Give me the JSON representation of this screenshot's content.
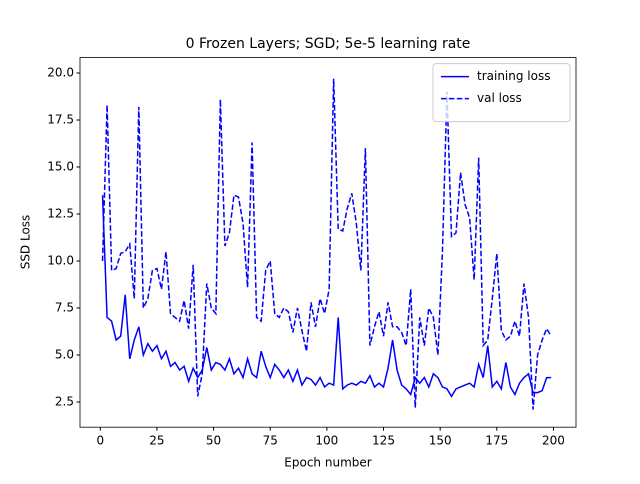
{
  "chart_data": {
    "type": "line",
    "title": "0 Frozen Layers; SGD; 5e-5 learning rate",
    "xlabel": "Epoch number",
    "ylabel": "SSD Loss",
    "x": [
      1,
      3,
      5,
      7,
      9,
      11,
      13,
      15,
      17,
      19,
      21,
      23,
      25,
      27,
      29,
      31,
      33,
      35,
      37,
      39,
      41,
      43,
      45,
      47,
      49,
      51,
      53,
      55,
      57,
      59,
      61,
      63,
      65,
      67,
      69,
      71,
      73,
      75,
      77,
      79,
      81,
      83,
      85,
      87,
      89,
      91,
      93,
      95,
      97,
      99,
      101,
      103,
      105,
      107,
      109,
      111,
      113,
      115,
      117,
      119,
      121,
      123,
      125,
      127,
      129,
      131,
      133,
      135,
      137,
      139,
      141,
      143,
      145,
      147,
      149,
      151,
      153,
      155,
      157,
      159,
      161,
      163,
      165,
      167,
      169,
      171,
      173,
      175,
      177,
      179,
      181,
      183,
      185,
      187,
      189,
      191,
      193,
      195,
      197,
      199
    ],
    "series": [
      {
        "name": "training loss",
        "color": "#0000ff",
        "linestyle": "solid",
        "values": [
          13.5,
          7.0,
          6.8,
          5.8,
          6.0,
          8.2,
          4.8,
          5.8,
          6.5,
          5.0,
          5.6,
          5.2,
          5.5,
          4.8,
          5.2,
          4.4,
          4.6,
          4.2,
          4.4,
          3.6,
          4.3,
          3.8,
          4.2,
          5.4,
          4.2,
          4.6,
          4.5,
          4.2,
          4.8,
          4.0,
          4.3,
          3.8,
          4.8,
          4.0,
          3.8,
          5.2,
          4.4,
          3.8,
          4.5,
          4.2,
          3.8,
          4.2,
          3.6,
          4.2,
          3.4,
          3.8,
          3.7,
          3.4,
          3.8,
          3.3,
          3.5,
          3.4,
          7.0,
          3.2,
          3.4,
          3.5,
          3.4,
          3.6,
          3.5,
          3.9,
          3.3,
          3.5,
          3.3,
          4.3,
          5.8,
          4.2,
          3.4,
          3.2,
          2.9,
          3.8,
          3.5,
          3.8,
          3.3,
          4.0,
          3.8,
          3.3,
          3.2,
          2.8,
          3.2,
          3.3,
          3.4,
          3.5,
          3.3,
          4.5,
          3.8,
          5.5,
          3.3,
          3.6,
          3.2,
          4.6,
          3.3,
          2.9,
          3.5,
          3.8,
          4.0,
          3.0,
          3.0,
          3.1,
          3.8,
          3.8
        ]
      },
      {
        "name": "val loss",
        "color": "#0000ff",
        "linestyle": "dashed",
        "values": [
          10.0,
          18.3,
          9.5,
          9.6,
          10.4,
          10.5,
          10.9,
          8.0,
          18.2,
          7.5,
          8.0,
          9.5,
          9.6,
          8.5,
          10.5,
          7.2,
          7.0,
          6.8,
          7.9,
          6.4,
          9.8,
          2.8,
          4.0,
          8.8,
          7.5,
          7.2,
          18.6,
          10.8,
          11.5,
          13.5,
          13.4,
          12.0,
          8.6,
          16.3,
          7.0,
          6.8,
          9.5,
          10.0,
          7.2,
          7.0,
          7.5,
          7.3,
          6.2,
          7.5,
          6.3,
          5.2,
          7.8,
          6.5,
          8.0,
          7.2,
          8.5,
          19.7,
          11.7,
          11.6,
          12.8,
          13.6,
          12.0,
          9.5,
          16.0,
          5.5,
          6.5,
          7.3,
          6.0,
          7.8,
          6.5,
          6.5,
          6.2,
          5.5,
          8.5,
          2.2,
          7.0,
          5.5,
          7.5,
          7.0,
          5.0,
          10.5,
          19.0,
          11.3,
          11.5,
          14.7,
          13.0,
          12.3,
          9.0,
          15.5,
          5.5,
          5.8,
          8.0,
          10.4,
          6.3,
          5.8,
          6.0,
          6.8,
          6.0,
          8.8,
          7.0,
          2.1,
          5.0,
          5.8,
          6.4,
          6.0
        ]
      }
    ],
    "xlim": [
      -8.95,
      209.95
    ],
    "xticks": [
      0,
      25,
      50,
      75,
      100,
      125,
      150,
      175,
      200
    ],
    "ylim": [
      1.16,
      20.82
    ],
    "yticks": [
      2.5,
      {
        "value": 5,
        "label": "5.0"
      },
      7.5,
      {
        "value": 10,
        "label": "10.0"
      },
      12.5,
      {
        "value": 15,
        "label": "15.0"
      },
      17.5,
      {
        "value": 20,
        "label": "20.0"
      }
    ],
    "legend": "upper right"
  }
}
